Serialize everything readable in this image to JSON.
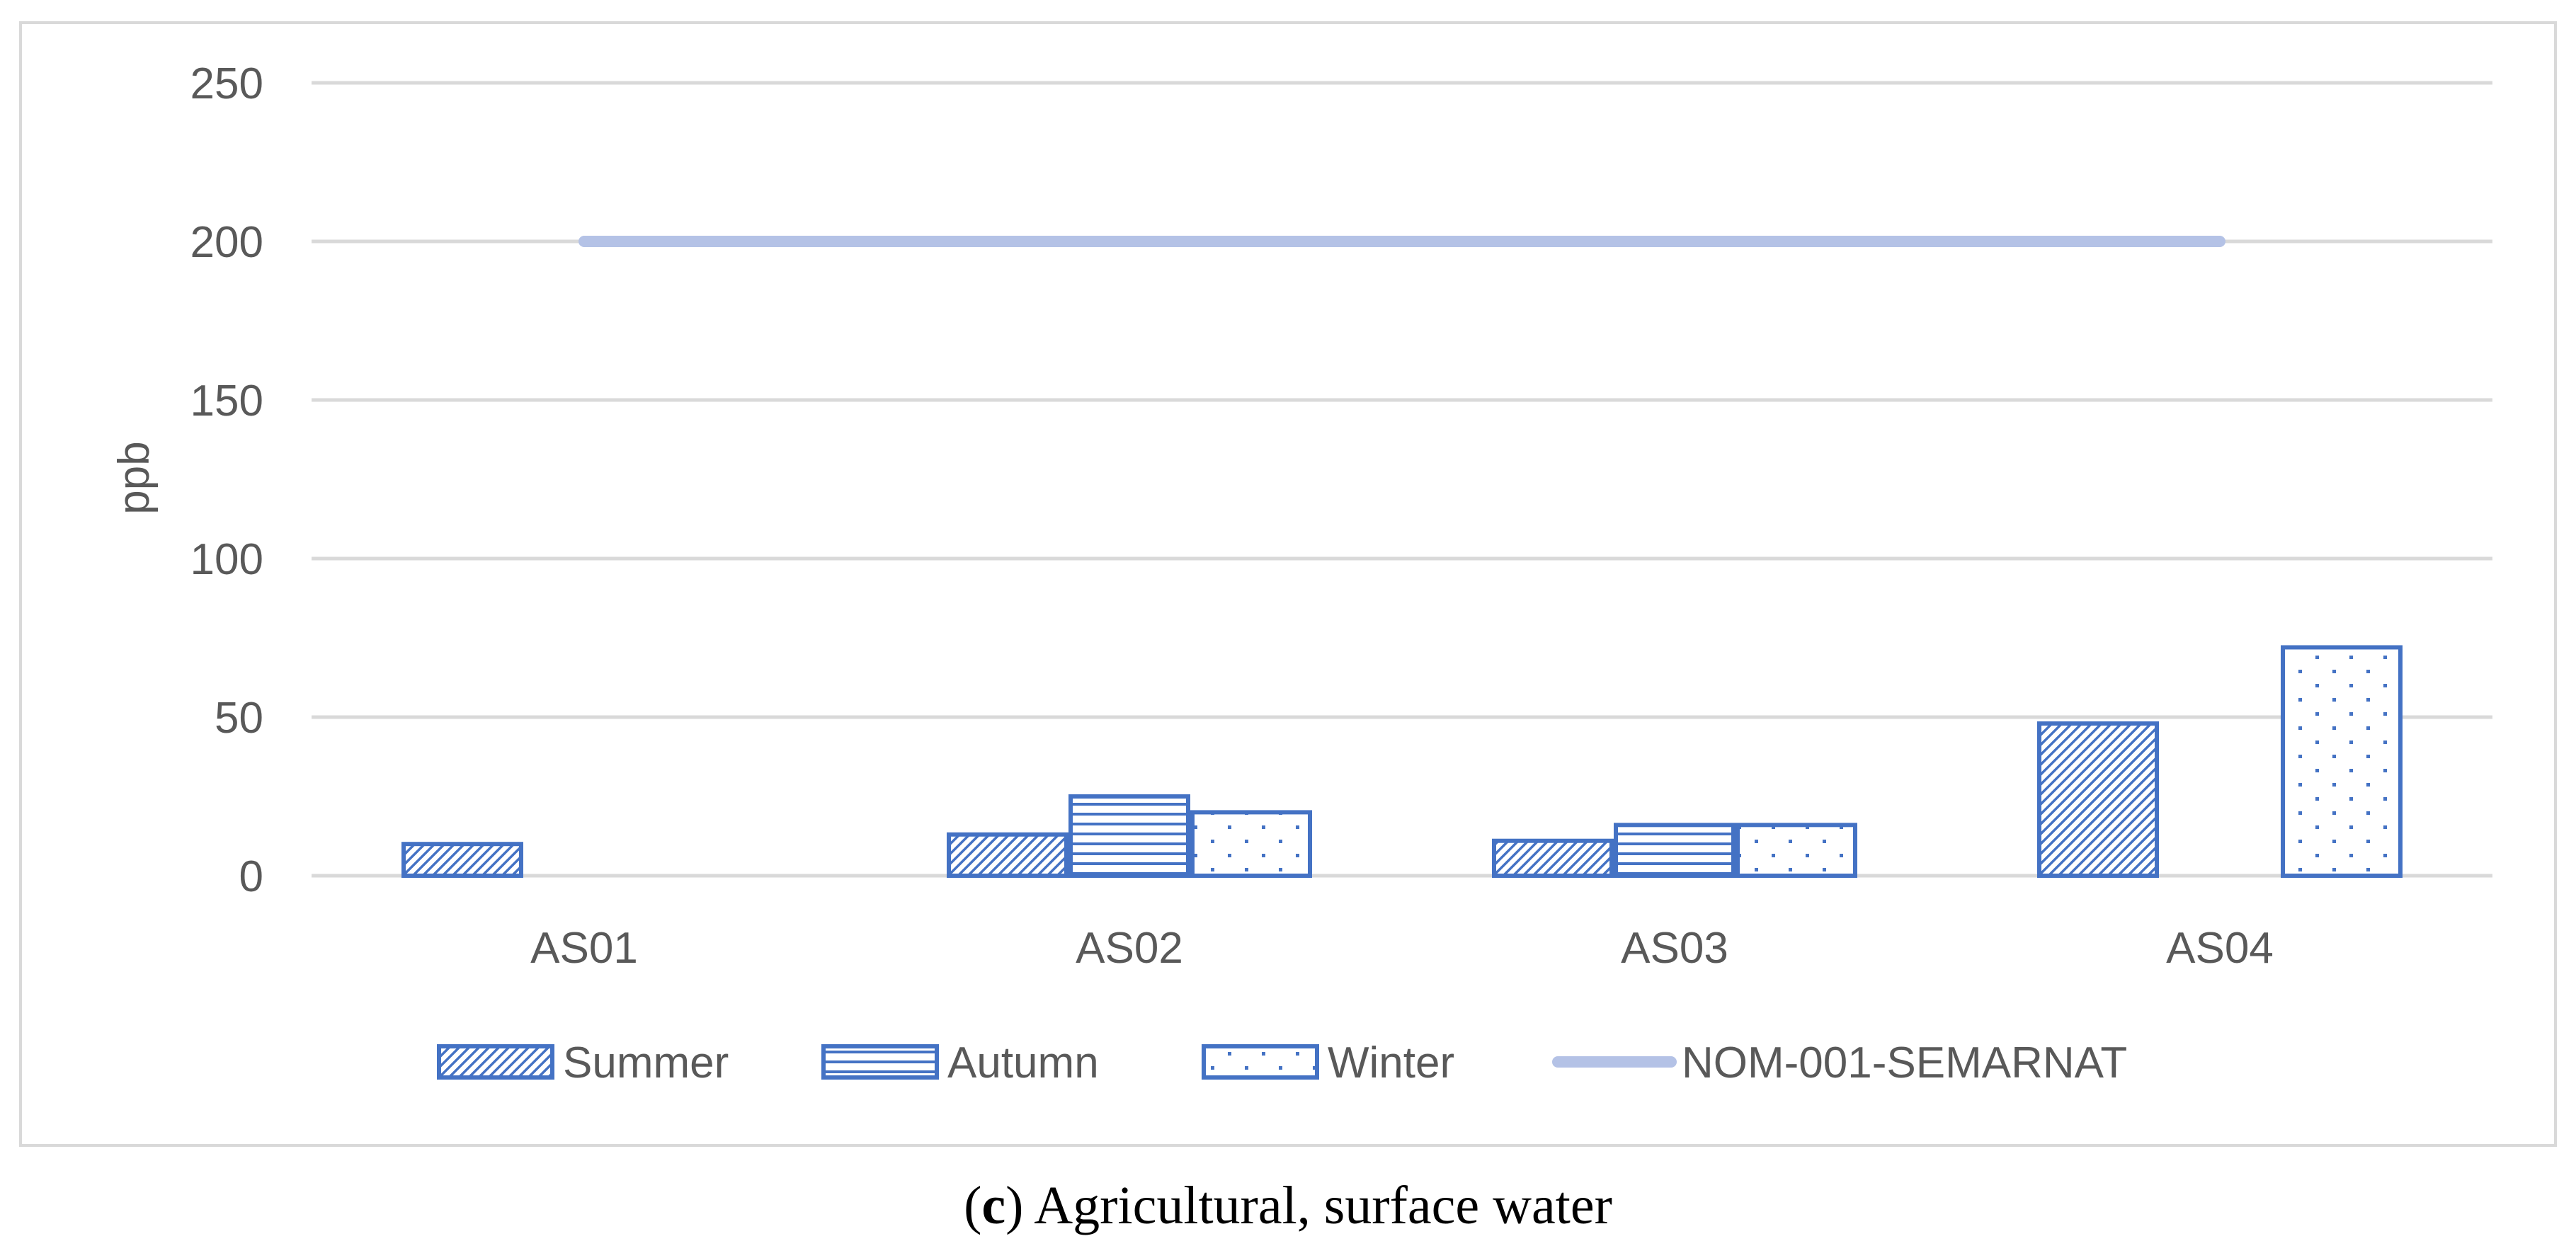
{
  "chart_data": {
    "type": "bar",
    "categories": [
      "AS01",
      "AS02",
      "AS03",
      "AS04"
    ],
    "series": [
      {
        "name": "Summer",
        "pattern": "diagonal",
        "values": [
          10,
          13,
          11,
          48
        ]
      },
      {
        "name": "Autumn",
        "pattern": "horizontal",
        "values": [
          0,
          25,
          16,
          0
        ]
      },
      {
        "name": "Winter",
        "pattern": "dots",
        "values": [
          0,
          20,
          16,
          72
        ]
      }
    ],
    "reference_line": {
      "name": "NOM-001-SEMARNAT",
      "value": 200
    },
    "ylabel": "ppb",
    "xlabel": "",
    "ylim": [
      0,
      250
    ],
    "yticks": [
      0,
      50,
      100,
      150,
      200,
      250
    ],
    "grid": true,
    "legend_position": "bottom",
    "colors": {
      "bar_stroke": "#4472c4",
      "reference_line": "#b4c2e6",
      "grid": "#d9d9d9",
      "text": "#595959"
    }
  },
  "caption": {
    "letter": "c",
    "text": "Agricultural, surface water"
  }
}
